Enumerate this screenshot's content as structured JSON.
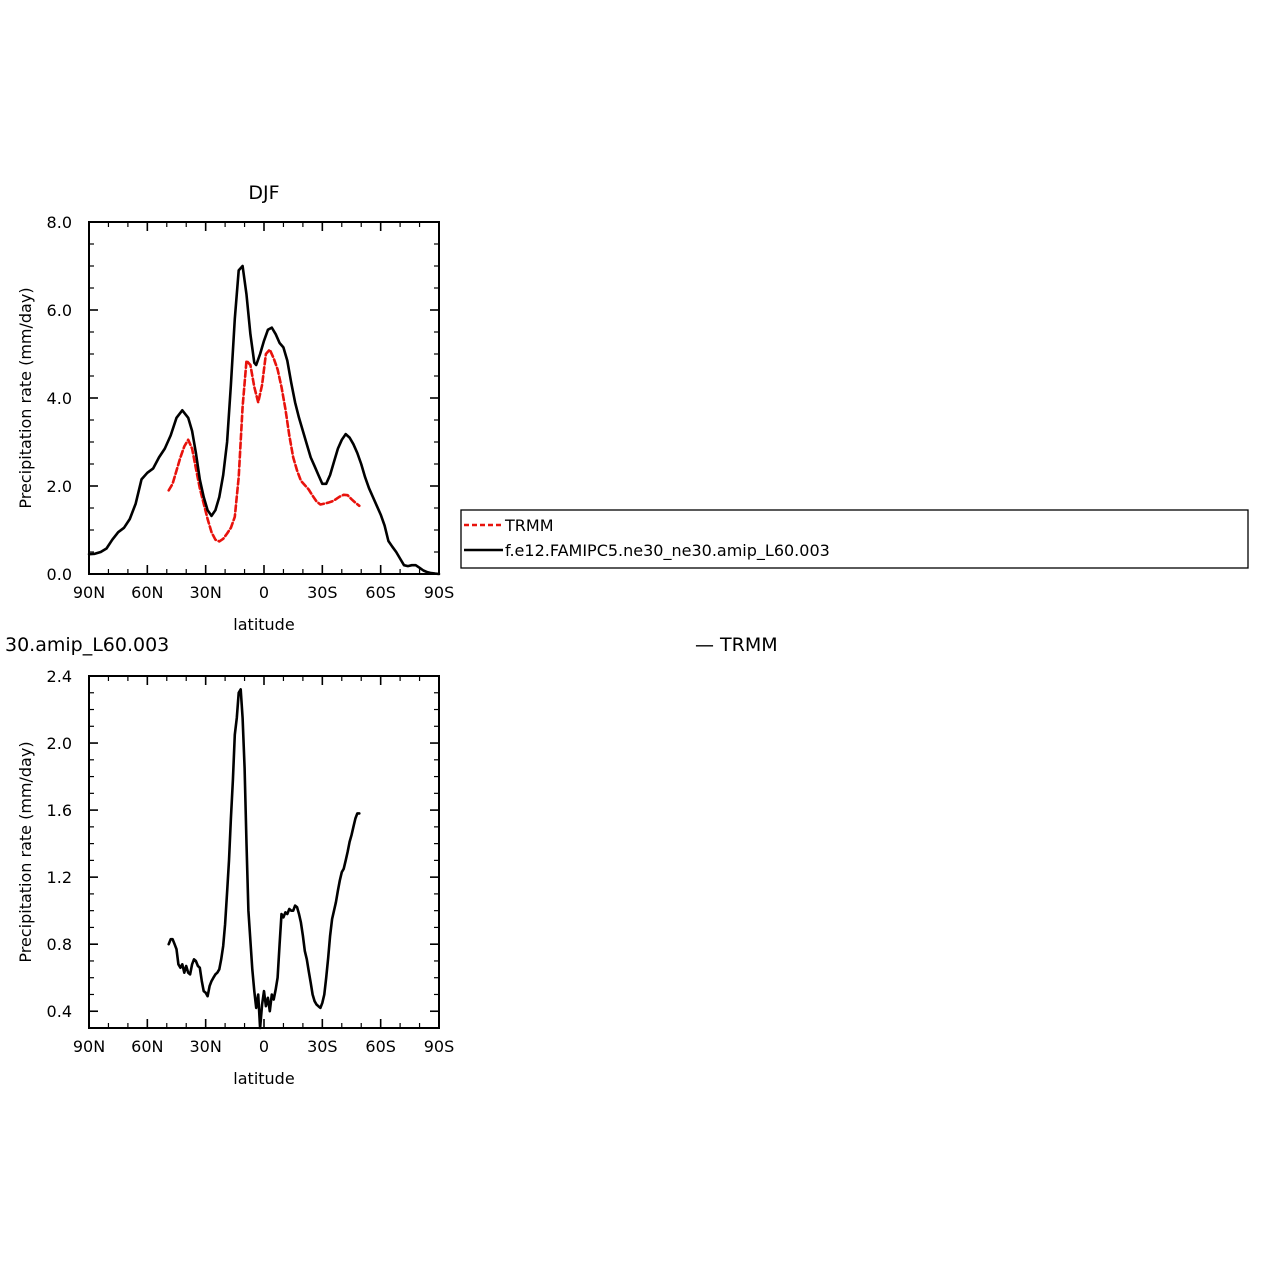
{
  "chart_data": [
    {
      "type": "line",
      "title": "DJF",
      "xlabel": "latitude",
      "ylabel": "Precipitation rate (mm/day)",
      "xlim": [
        90,
        -90
      ],
      "ylim": [
        0,
        8
      ],
      "x_ticks": [
        90,
        60,
        30,
        0,
        -30,
        -60,
        -90
      ],
      "x_tick_labels": [
        "90N",
        "60N",
        "30N",
        "0",
        "30S",
        "60S",
        "90S"
      ],
      "y_ticks": [
        0,
        2,
        4,
        6,
        8
      ],
      "y_tick_labels": [
        "0.0",
        "2.0",
        "4.0",
        "6.0",
        "8.0"
      ],
      "legend_placement": "right",
      "series": [
        {
          "name": "TRMM",
          "color": "#e8120c",
          "dash": true,
          "x": [
            49,
            47,
            45,
            43,
            41,
            39,
            37,
            35,
            33,
            31,
            29,
            27,
            25,
            23,
            21,
            19,
            17,
            15,
            13,
            11,
            9,
            7,
            5,
            3,
            1,
            -1,
            -3,
            -5,
            -7,
            -9,
            -11,
            -13,
            -15,
            -17,
            -19,
            -21,
            -23,
            -25,
            -27,
            -29,
            -31,
            -33,
            -35,
            -37,
            -39,
            -41,
            -43,
            -45,
            -47,
            -49
          ],
          "y": [
            1.9,
            2.05,
            2.35,
            2.65,
            2.9,
            3.05,
            2.85,
            2.4,
            1.95,
            1.6,
            1.25,
            0.95,
            0.78,
            0.74,
            0.8,
            0.92,
            1.05,
            1.3,
            2.2,
            3.8,
            4.85,
            4.75,
            4.25,
            3.9,
            4.3,
            5.0,
            5.1,
            4.9,
            4.65,
            4.25,
            3.75,
            3.15,
            2.65,
            2.35,
            2.12,
            2.02,
            1.92,
            1.78,
            1.65,
            1.58,
            1.6,
            1.62,
            1.65,
            1.7,
            1.76,
            1.8,
            1.79,
            1.7,
            1.62,
            1.55
          ]
        },
        {
          "name": "f.e12.FAMIPC5.ne30_ne30.amip_L60.003",
          "color": "#000000",
          "dash": false,
          "x": [
            90,
            87,
            84,
            81,
            78,
            75,
            72,
            69,
            66,
            63,
            60,
            57,
            54,
            51,
            48,
            45,
            42,
            39,
            37,
            35,
            33,
            31,
            29,
            27,
            25,
            23,
            21,
            19,
            17,
            15,
            13,
            11,
            9,
            7,
            5,
            4,
            2,
            0,
            -2,
            -4,
            -6,
            -8,
            -10,
            -12,
            -14,
            -16,
            -18,
            -20,
            -22,
            -24,
            -26,
            -28,
            -30,
            -32,
            -34,
            -36,
            -38,
            -40,
            -42,
            -44,
            -46,
            -48,
            -50,
            -52,
            -54,
            -56,
            -58,
            -60,
            -62,
            -64,
            -66,
            -68,
            -70,
            -72,
            -74,
            -76,
            -78,
            -80,
            -82,
            -84,
            -86,
            -88,
            -90
          ],
          "y": [
            0.45,
            0.46,
            0.5,
            0.58,
            0.78,
            0.95,
            1.05,
            1.25,
            1.6,
            2.15,
            2.3,
            2.4,
            2.65,
            2.85,
            3.15,
            3.55,
            3.72,
            3.55,
            3.25,
            2.75,
            2.15,
            1.75,
            1.45,
            1.32,
            1.45,
            1.75,
            2.25,
            3.0,
            4.3,
            5.8,
            6.9,
            7.0,
            6.35,
            5.45,
            4.8,
            4.75,
            5.0,
            5.3,
            5.55,
            5.6,
            5.45,
            5.25,
            5.15,
            4.85,
            4.35,
            3.9,
            3.55,
            3.25,
            2.95,
            2.65,
            2.45,
            2.25,
            2.05,
            2.05,
            2.25,
            2.55,
            2.85,
            3.05,
            3.18,
            3.1,
            2.95,
            2.75,
            2.5,
            2.2,
            1.95,
            1.75,
            1.55,
            1.35,
            1.1,
            0.75,
            0.62,
            0.5,
            0.35,
            0.2,
            0.18,
            0.2,
            0.2,
            0.14,
            0.08,
            0.04,
            0.02,
            0.01,
            0.0
          ]
        }
      ]
    },
    {
      "type": "line",
      "title": "30.amip_L60.003",
      "xlabel": "latitude",
      "ylabel": "Precipitation rate (mm/day)",
      "xlim": [
        90,
        -90
      ],
      "ylim": [
        0.3,
        2.4
      ],
      "x_ticks": [
        90,
        60,
        30,
        0,
        -30,
        -60,
        -90
      ],
      "x_tick_labels": [
        "90N",
        "60N",
        "30N",
        "0",
        "30S",
        "60S",
        "90S"
      ],
      "y_ticks": [
        0.4,
        0.8,
        1.2,
        1.6,
        2.0,
        2.4
      ],
      "y_tick_labels": [
        "0.4",
        "0.8",
        "1.2",
        "1.6",
        "2.0",
        "2.4"
      ],
      "legend_text": "— TRMM",
      "series": [
        {
          "color": "#000000",
          "dash": false,
          "x": [
            49,
            48,
            47,
            46,
            45,
            44,
            43,
            42,
            41,
            40,
            39,
            38,
            37,
            36,
            35,
            34,
            33,
            32,
            31,
            30,
            29,
            28,
            27,
            26,
            25,
            24,
            23,
            22,
            21,
            20,
            19,
            18,
            17,
            16,
            15,
            14,
            13,
            12,
            11,
            10,
            9,
            8,
            7,
            6,
            5,
            4,
            3,
            2,
            1,
            0,
            -1,
            -2,
            -3,
            -4,
            -5,
            -6,
            -7,
            -8,
            -9,
            -10,
            -11,
            -12,
            -13,
            -14,
            -15,
            -16,
            -17,
            -18,
            -19,
            -20,
            -21,
            -22,
            -23,
            -24,
            -25,
            -26,
            -27,
            -28,
            -29,
            -30,
            -31,
            -32,
            -33,
            -34,
            -35,
            -36,
            -37,
            -38,
            -39,
            -40,
            -41,
            -42,
            -43,
            -44,
            -45,
            -46,
            -47,
            -48,
            -49
          ],
          "y": [
            0.8,
            0.83,
            0.83,
            0.8,
            0.77,
            0.68,
            0.66,
            0.68,
            0.63,
            0.67,
            0.63,
            0.62,
            0.68,
            0.71,
            0.7,
            0.67,
            0.66,
            0.58,
            0.52,
            0.51,
            0.49,
            0.55,
            0.58,
            0.6,
            0.62,
            0.63,
            0.65,
            0.71,
            0.79,
            0.92,
            1.11,
            1.3,
            1.55,
            1.78,
            2.05,
            2.15,
            2.3,
            2.32,
            2.15,
            1.85,
            1.4,
            1.0,
            0.82,
            0.65,
            0.52,
            0.42,
            0.5,
            0.3,
            0.44,
            0.52,
            0.43,
            0.48,
            0.4,
            0.5,
            0.47,
            0.53,
            0.6,
            0.8,
            0.98,
            0.96,
            0.99,
            0.98,
            1.01,
            1.0,
            1.0,
            1.03,
            1.02,
            0.98,
            0.93,
            0.85,
            0.76,
            0.71,
            0.64,
            0.57,
            0.5,
            0.46,
            0.44,
            0.43,
            0.42,
            0.45,
            0.5,
            0.6,
            0.72,
            0.85,
            0.95,
            1.0,
            1.05,
            1.12,
            1.18,
            1.23,
            1.25,
            1.3,
            1.35,
            1.41,
            1.45,
            1.5,
            1.55,
            1.58,
            1.58
          ]
        }
      ]
    }
  ]
}
